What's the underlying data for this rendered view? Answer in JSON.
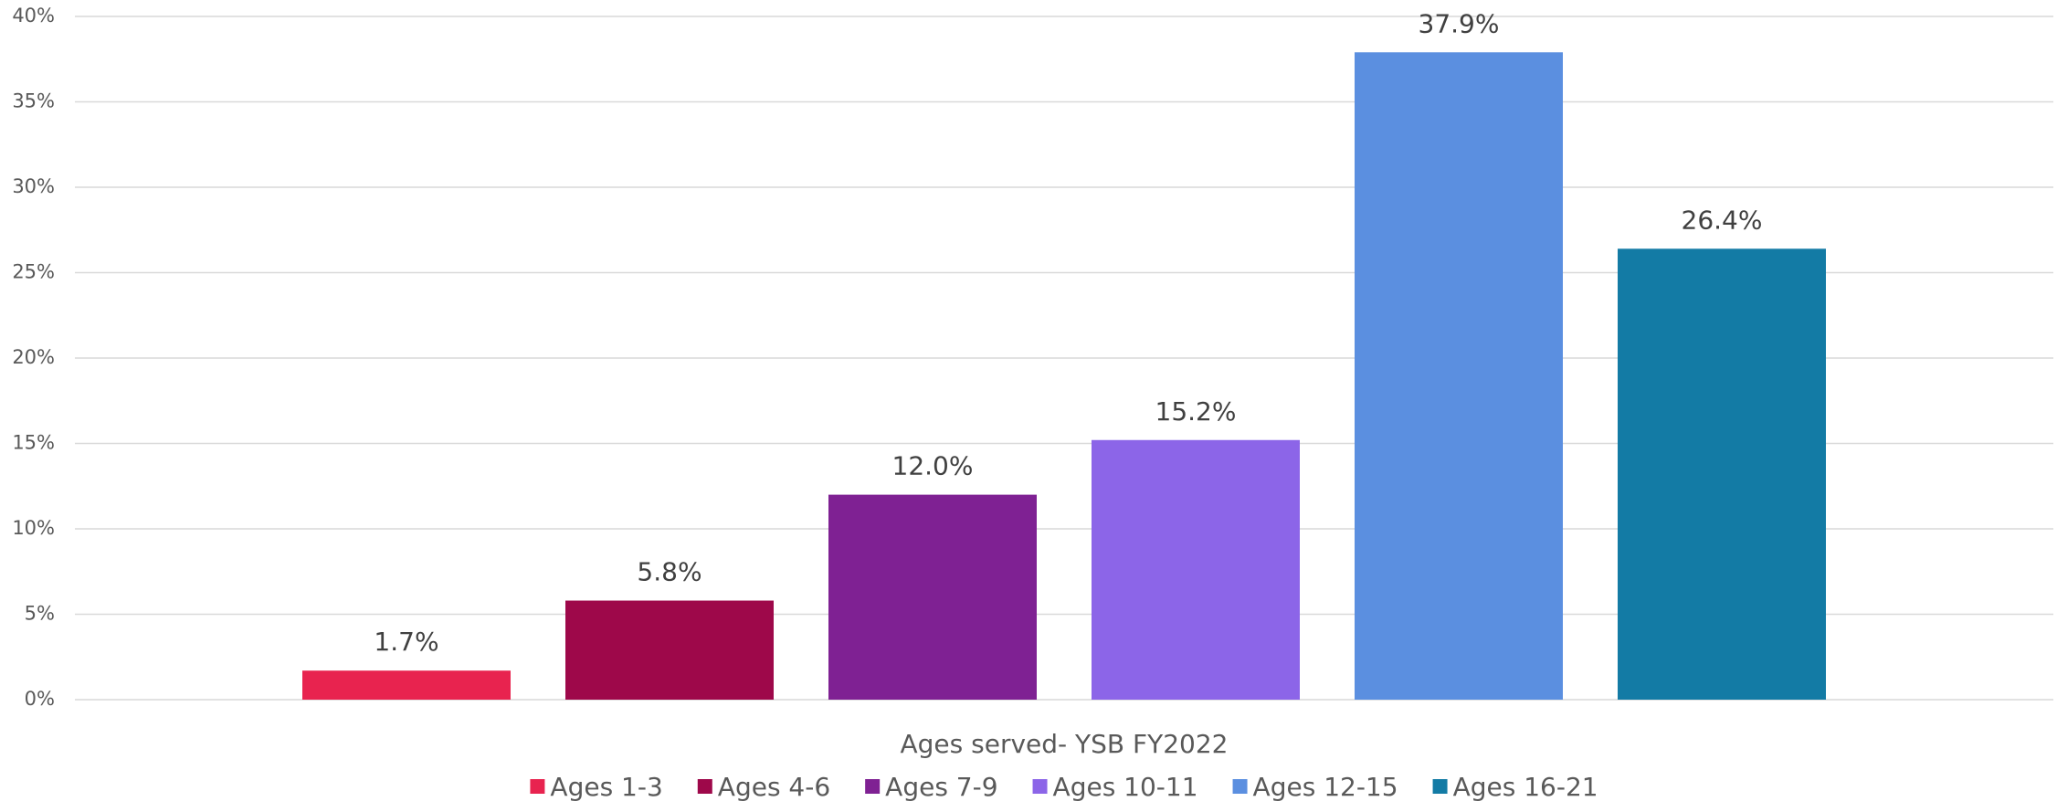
{
  "chart_data": {
    "type": "bar",
    "categories": [
      "Ages served- YSB FY2022"
    ],
    "series": [
      {
        "name": "Ages 1-3",
        "color": "#e8234f",
        "values": [
          1.7
        ],
        "value_labels": [
          "1.7%"
        ]
      },
      {
        "name": "Ages 4-6",
        "color": "#9e084a",
        "values": [
          5.8
        ],
        "value_labels": [
          "5.8%"
        ]
      },
      {
        "name": "Ages 7-9",
        "color": "#7f2193",
        "values": [
          12.0
        ],
        "value_labels": [
          "12.0%"
        ]
      },
      {
        "name": "Ages 10-11",
        "color": "#8c65e8",
        "values": [
          15.2
        ],
        "value_labels": [
          "15.2%"
        ]
      },
      {
        "name": "Ages 12-15",
        "color": "#5b8fe0",
        "values": [
          37.9
        ],
        "value_labels": [
          "37.9%"
        ]
      },
      {
        "name": "Ages 16-21",
        "color": "#137ba5",
        "values": [
          26.4
        ],
        "value_labels": [
          "26.4%"
        ]
      }
    ],
    "ylim": [
      0,
      40
    ],
    "yticks": [
      {
        "value": 0,
        "label": "0%"
      },
      {
        "value": 5,
        "label": "5%"
      },
      {
        "value": 10,
        "label": "10%"
      },
      {
        "value": 15,
        "label": "15%"
      },
      {
        "value": 20,
        "label": "20%"
      },
      {
        "value": 25,
        "label": "25%"
      },
      {
        "value": 30,
        "label": "30%"
      },
      {
        "value": 35,
        "label": "35%"
      },
      {
        "value": 40,
        "label": "40%"
      }
    ],
    "grid": true,
    "legend": "bottom"
  }
}
